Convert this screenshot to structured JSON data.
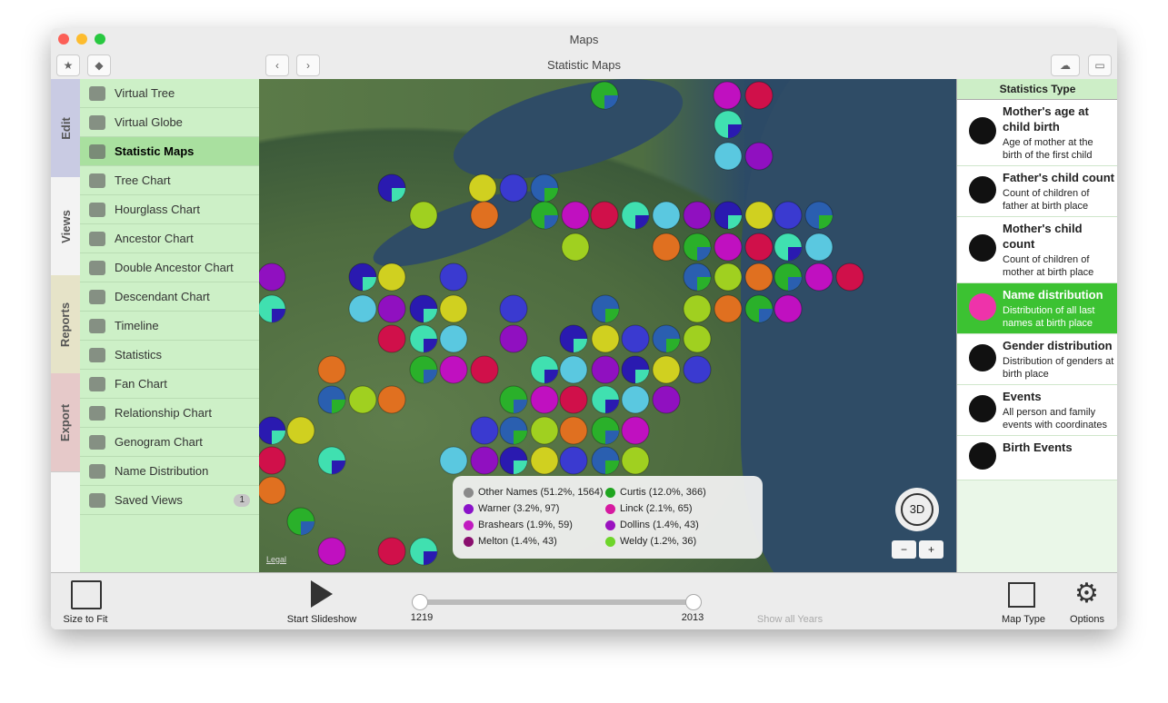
{
  "window": {
    "title": "Maps",
    "toolbar_title": "Statistic Maps"
  },
  "side_tabs": [
    "Edit",
    "Views",
    "Reports",
    "Export"
  ],
  "views": [
    {
      "label": "Virtual Tree"
    },
    {
      "label": "Virtual Globe"
    },
    {
      "label": "Statistic Maps",
      "selected": true
    },
    {
      "label": "Tree Chart"
    },
    {
      "label": "Hourglass Chart"
    },
    {
      "label": "Ancestor Chart"
    },
    {
      "label": "Double Ancestor Chart"
    },
    {
      "label": "Descendant Chart"
    },
    {
      "label": "Timeline"
    },
    {
      "label": "Statistics"
    },
    {
      "label": "Fan Chart"
    },
    {
      "label": "Relationship Chart"
    },
    {
      "label": "Genogram Chart"
    },
    {
      "label": "Name Distribution"
    },
    {
      "label": "Saved Views",
      "badge": "1"
    }
  ],
  "statistics_panel": {
    "header": "Statistics Type",
    "items": [
      {
        "title": "Mother's age at child birth",
        "description": "Age of mother at the birth of the first child"
      },
      {
        "title": "Father's child count",
        "description": "Count of children of father at birth place"
      },
      {
        "title": "Mother's child count",
        "description": "Count of children of mother at birth place"
      },
      {
        "title": "Name distribution",
        "description": "Distribution of all last names at birth place",
        "selected": true
      },
      {
        "title": "Gender distribution",
        "description": "Distribution of genders at birth place"
      },
      {
        "title": "Events",
        "description": "All person and family events with coordinates"
      },
      {
        "title": "Birth Events",
        "description": ""
      }
    ]
  },
  "map": {
    "legal": "Legal",
    "compass": "3D",
    "legend": [
      {
        "label": "Other Names (51.2%, 1564)",
        "color": "#8a8a8a"
      },
      {
        "label": "Curtis (12.0%, 366)",
        "color": "#1fa51f"
      },
      {
        "label": "Warner (3.2%, 97)",
        "color": "#8a12c9"
      },
      {
        "label": "Linck (2.1%, 65)",
        "color": "#d61aa0"
      },
      {
        "label": "Brashears (1.9%, 59)",
        "color": "#c11bc0"
      },
      {
        "label": "Dollins (1.4%, 43)",
        "color": "#9b12c0"
      },
      {
        "label": "Melton (1.4%, 43)",
        "color": "#8a0f6e"
      },
      {
        "label": "Weldy (1.2%, 36)",
        "color": "#6ed52a"
      }
    ]
  },
  "bottom_bar": {
    "size_to_fit": "Size to Fit",
    "slideshow": "Start Slideshow",
    "year_start": "1219",
    "year_end": "2013",
    "show_all": "Show all Years",
    "map_type": "Map Type",
    "options": "Options"
  }
}
